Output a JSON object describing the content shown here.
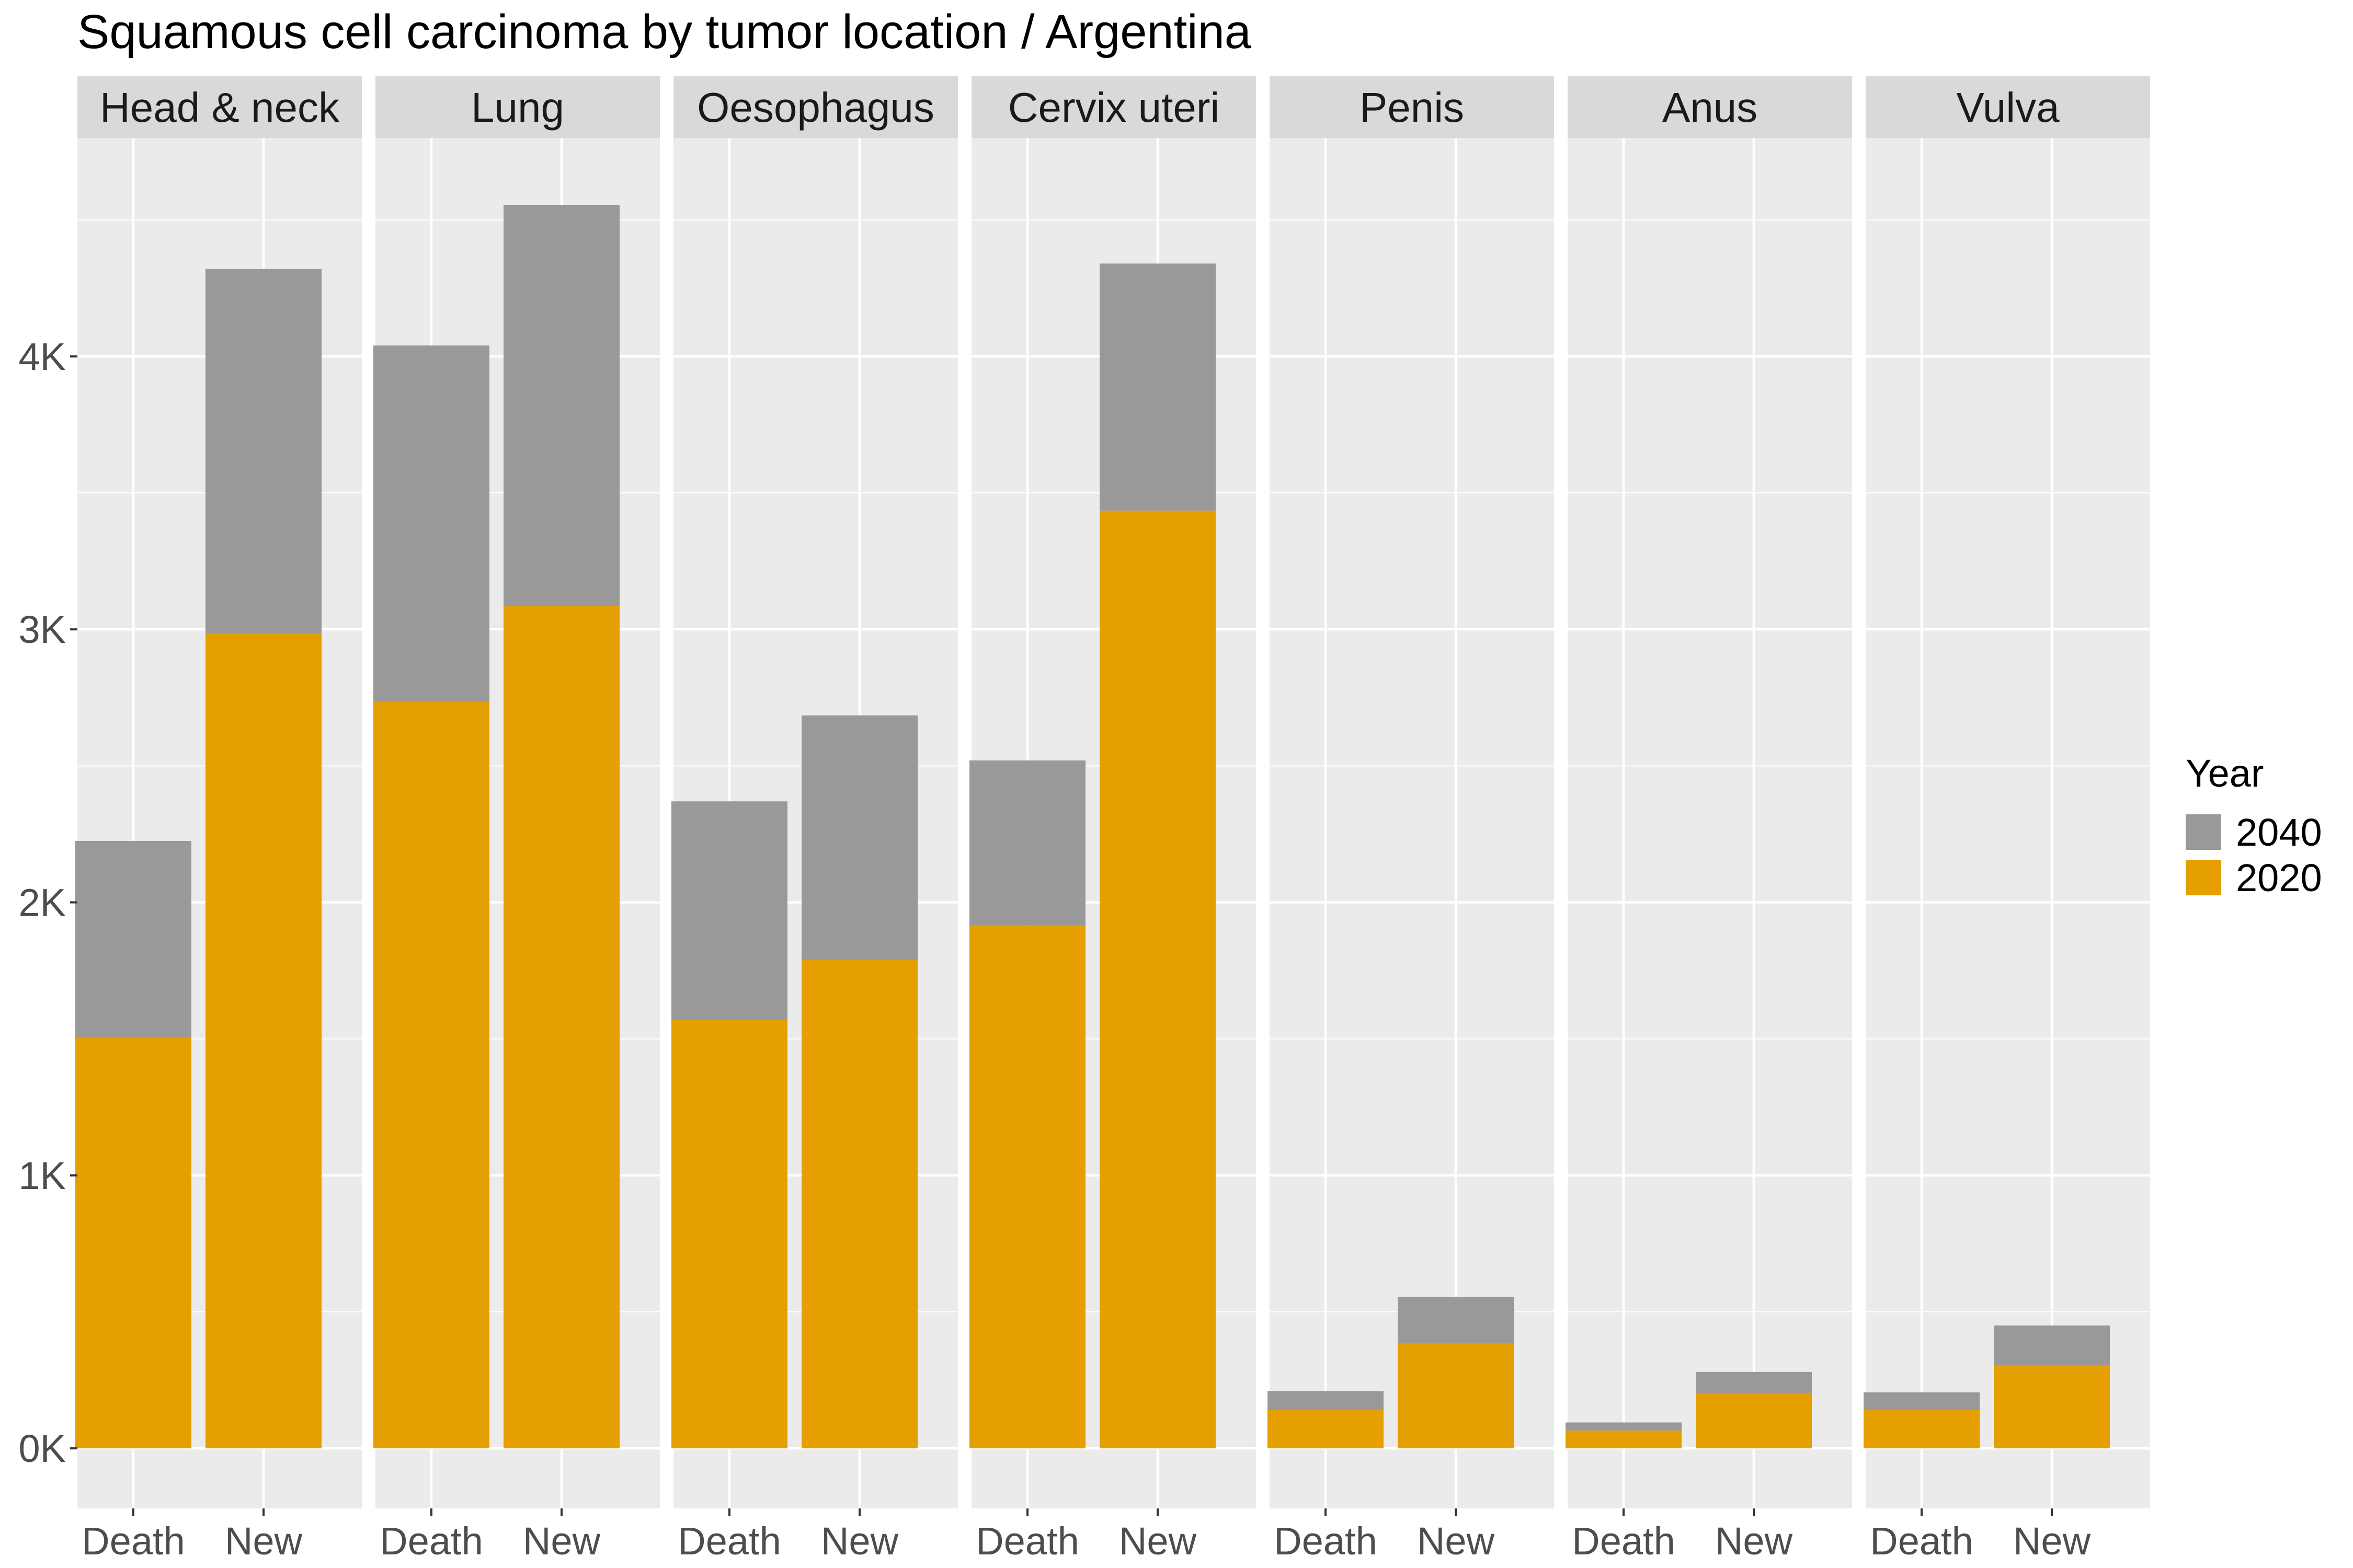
{
  "chart_data": {
    "type": "bar",
    "stacked": true,
    "title": "Squamous cell carcinoma by tumor location / Argentina",
    "facets": [
      "Head & neck",
      "Lung",
      "Oesophagus",
      "Cervix uteri",
      "Penis",
      "Anus",
      "Vulva"
    ],
    "categories": [
      "Death",
      "New"
    ],
    "series": [
      {
        "name": "2020",
        "color": "#E69F00",
        "values": [
          [
            1505,
            2985
          ],
          [
            2735,
            3085
          ],
          [
            1570,
            1790
          ],
          [
            1915,
            3435
          ],
          [
            140,
            385
          ],
          [
            65,
            200
          ],
          [
            140,
            305
          ]
        ]
      },
      {
        "name": "2040",
        "color": "#999999",
        "values": [
          [
            720,
            1335
          ],
          [
            1305,
            1470
          ],
          [
            800,
            895
          ],
          [
            605,
            905
          ],
          [
            70,
            170
          ],
          [
            30,
            80
          ],
          [
            65,
            145
          ]
        ]
      }
    ],
    "stack_totals": [
      [
        2225,
        4320
      ],
      [
        4040,
        4555
      ],
      [
        2370,
        2685
      ],
      [
        2520,
        4340
      ],
      [
        210,
        555
      ],
      [
        95,
        280
      ],
      [
        205,
        450
      ]
    ],
    "y_ticks": [
      0,
      1000,
      2000,
      3000,
      4000
    ],
    "y_tick_labels": [
      "0K",
      "1K",
      "2K",
      "3K",
      "4K"
    ],
    "ylim": [
      -220,
      4800
    ],
    "xlabel": "",
    "ylabel": "",
    "grid": true,
    "legend": {
      "title": "Year",
      "position": "right",
      "entries": [
        {
          "label": "2040",
          "color": "#999999"
        },
        {
          "label": "2020",
          "color": "#E69F00"
        }
      ]
    }
  }
}
